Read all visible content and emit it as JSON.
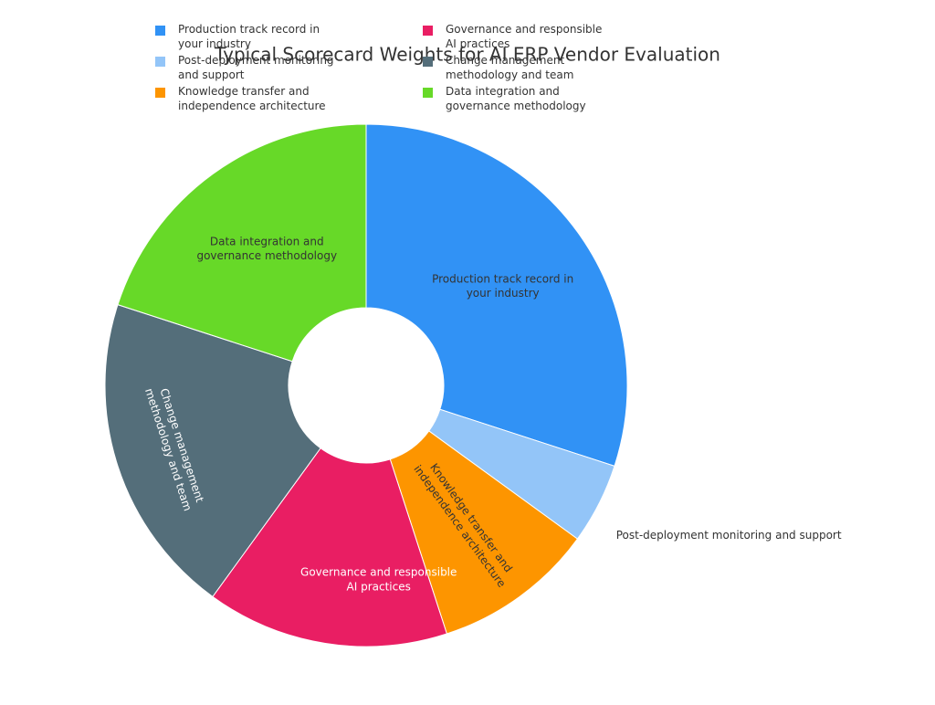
{
  "chart_data": {
    "type": "pie",
    "title": "Typical Scorecard Weights for AI ERP Vendor Evaluation",
    "categories": [
      "Production track record in your industry",
      "Post-deployment monitoring and support",
      "Knowledge transfer and independence architecture",
      "Governance and responsible AI practices",
      "Change management methodology and team",
      "Data integration and governance methodology"
    ],
    "values": [
      30,
      5,
      10,
      15,
      20,
      20
    ],
    "colors": [
      "#3192f5",
      "#93c5f8",
      "#fd9500",
      "#e91e63",
      "#546e7a",
      "#67d928"
    ],
    "hole": true
  }
}
